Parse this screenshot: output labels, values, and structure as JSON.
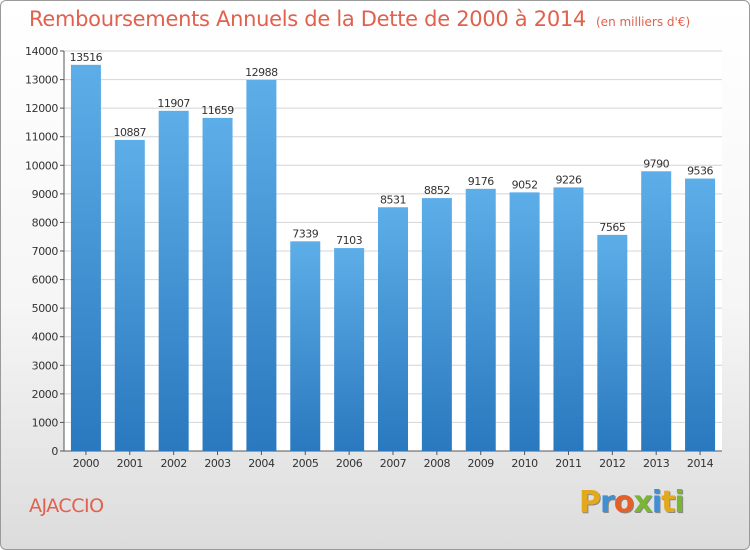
{
  "title": "Remboursements Annuels de la Dette de 2000 à 2014",
  "subtitle": "(en milliers d'€)",
  "city": "AJACCIO",
  "logo": {
    "letters": [
      "P",
      "r",
      "o",
      "x",
      "i",
      "t",
      "i"
    ],
    "colors": [
      "#e3a91c",
      "#3f8fd2",
      "#e3602b",
      "#7ab535",
      "#3f8fd2",
      "#e3a91c",
      "#7ab535"
    ]
  },
  "colors": {
    "bar_top": "#5daee8",
    "bar_bottom": "#2a78be",
    "title": "#e0614e"
  },
  "chart_data": {
    "type": "bar",
    "title": "Remboursements Annuels de la Dette de 2000 à 2014",
    "subtitle": "(en milliers d'€)",
    "categories": [
      "2000",
      "2001",
      "2002",
      "2003",
      "2004",
      "2005",
      "2006",
      "2007",
      "2008",
      "2009",
      "2010",
      "2011",
      "2012",
      "2013",
      "2014"
    ],
    "values": [
      13516,
      10887,
      11907,
      11659,
      12988,
      7339,
      7103,
      8531,
      8852,
      9176,
      9052,
      9226,
      7565,
      9790,
      9536
    ],
    "ylim": [
      0,
      14000
    ],
    "yticks": [
      0,
      1000,
      2000,
      3000,
      4000,
      5000,
      6000,
      7000,
      8000,
      9000,
      10000,
      11000,
      12000,
      13000,
      14000
    ],
    "grid": true,
    "data_labels": true
  }
}
